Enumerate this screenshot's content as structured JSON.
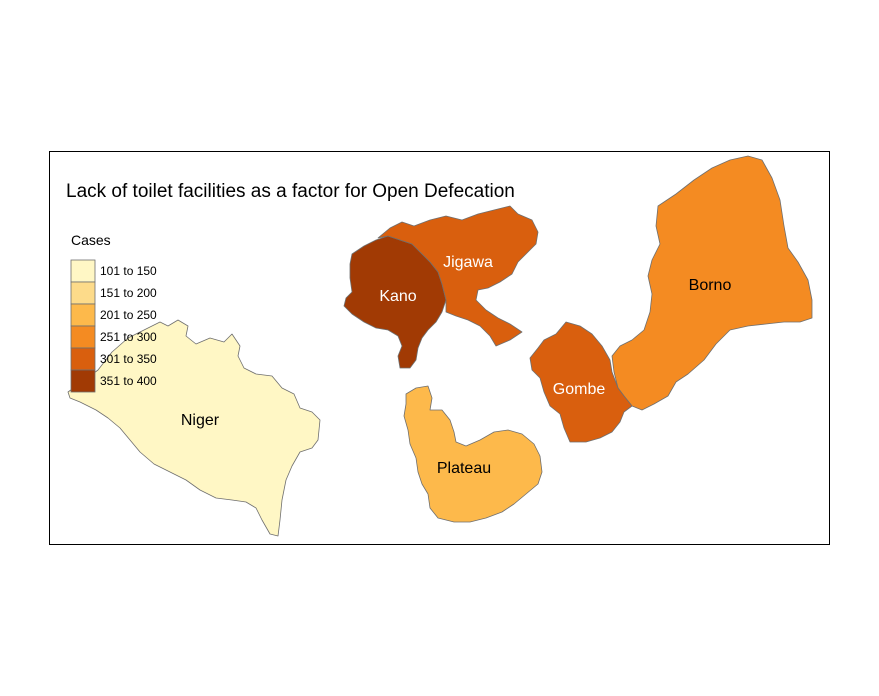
{
  "map": {
    "title": "Lack of toilet facilities as a factor for Open Defecation",
    "legend": {
      "title": "Cases",
      "classes": [
        {
          "label": "101 to 150",
          "color": "#FFF7C5"
        },
        {
          "label": "151 to 200",
          "color": "#FDDB8A"
        },
        {
          "label": "201 to 250",
          "color": "#FDB94B"
        },
        {
          "label": "251 to 300",
          "color": "#F48B22"
        },
        {
          "label": "301 to 350",
          "color": "#D95F0E"
        },
        {
          "label": "351 to 400",
          "color": "#A13A04"
        }
      ]
    },
    "regions": {
      "niger": {
        "name": "Niger",
        "class_label": "101 to 150",
        "color": "#FFF7C5",
        "label_color": "#000000"
      },
      "kano": {
        "name": "Kano",
        "class_label": "351 to 400",
        "color": "#A13A04",
        "label_color": "#ffffff"
      },
      "jigawa": {
        "name": "Jigawa",
        "class_label": "301 to 350",
        "color": "#D95F0E",
        "label_color": "#ffffff"
      },
      "borno": {
        "name": "Borno",
        "class_label": "251 to 300",
        "color": "#F48B22",
        "label_color": "#000000"
      },
      "gombe": {
        "name": "Gombe",
        "class_label": "301 to 350",
        "color": "#D95F0E",
        "label_color": "#ffffff"
      },
      "plateau": {
        "name": "Plateau",
        "class_label": "201 to 250",
        "color": "#FDB94B",
        "label_color": "#000000"
      }
    }
  }
}
